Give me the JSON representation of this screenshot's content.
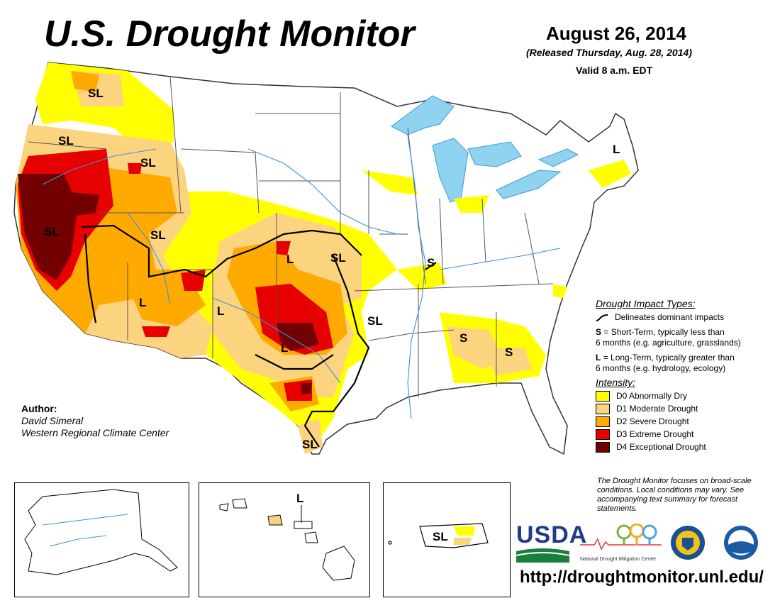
{
  "header": {
    "title": "U.S. Drought Monitor",
    "date": "August 26, 2014",
    "released": "(Released Thursday, Aug. 28, 2014)",
    "valid": "Valid 8 a.m. EDT"
  },
  "map": {
    "region_labels": [
      "SL",
      "SL",
      "SL",
      "SL",
      "SL",
      "SL",
      "L",
      "L",
      "L",
      "L",
      "SL",
      "S",
      "SL",
      "S",
      "S",
      "L",
      "SL"
    ],
    "alaska_label": "",
    "hawaii_label": "L",
    "puerto_rico_label": "SL"
  },
  "legend": {
    "impact_heading": "Drought Impact Types:",
    "impact_line_text": "Delineates dominant impacts",
    "short_term_letter": "S",
    "short_term_text": "= Short-Term, typically less than",
    "short_term_text2": "6 months (e.g. agriculture, grasslands)",
    "long_term_letter": "L",
    "long_term_text": "= Long-Term, typically greater than",
    "long_term_text2": "6 months (e.g. hydrology, ecology)",
    "intensity_heading": "Intensity:",
    "categories": [
      {
        "label": "D0 Abnormally Dry",
        "color": "#ffff00"
      },
      {
        "label": "D1 Moderate Drought",
        "color": "#fcd37f"
      },
      {
        "label": "D2 Severe Drought",
        "color": "#ffaa00"
      },
      {
        "label": "D3 Extreme Drought",
        "color": "#e60000"
      },
      {
        "label": "D4 Exceptional Drought",
        "color": "#730000"
      }
    ]
  },
  "author": {
    "heading": "Author:",
    "name": "David Simeral",
    "org": "Western Regional Climate Center"
  },
  "note": "The Drought Monitor focuses on broad-scale conditions. Local conditions may vary. See accompanying text summary for forecast statements.",
  "logos": {
    "usda": "USDA",
    "ndmc": "National Drought Mitigation Center"
  },
  "url": "http://droughtmonitor.unl.edu/"
}
